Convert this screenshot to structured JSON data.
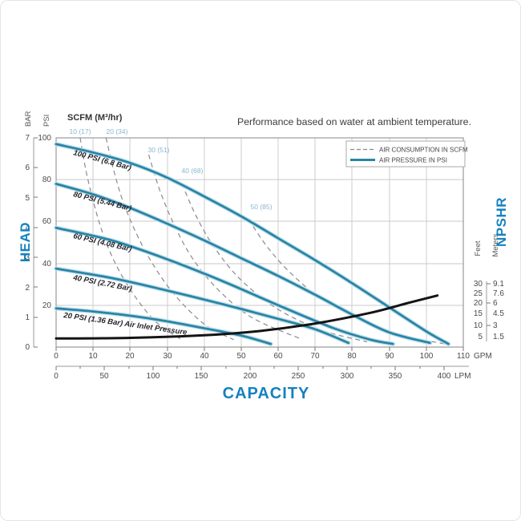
{
  "title": "Performance based on water at ambient temperature.",
  "scfm_header": "SCFM (M³/hr)",
  "legend": {
    "air_consumption": "AIR CONSUMPTION IN SCFM",
    "air_pressure": "AIR PRESSURE IN PSI"
  },
  "axes": {
    "head_title": "HEAD",
    "capacity_title": "CAPACITY",
    "npshr_title": "NPSHR",
    "bar_label": "BAR",
    "psi_label": "PSI",
    "feet_label": "Feet",
    "meters_label": "Meters",
    "gpm_unit": "GPM",
    "lpm_unit": "LPM",
    "bar_ticks": [
      "7",
      "6",
      "5",
      "4",
      "3",
      "2",
      "1",
      "0"
    ],
    "psi_ticks": [
      "100",
      "80",
      "60",
      "40",
      "20"
    ],
    "gpm_ticks": [
      "0",
      "10",
      "20",
      "30",
      "40",
      "50",
      "60",
      "70",
      "80",
      "90",
      "100",
      "110"
    ],
    "lpm_ticks": [
      "0",
      "50",
      "100",
      "150",
      "200",
      "250",
      "300",
      "350",
      "400"
    ],
    "feet_ticks": [
      "30",
      "25",
      "20",
      "15",
      "10",
      "5"
    ],
    "meters_ticks": [
      "9.1",
      "7.6",
      "6",
      "4.5",
      "3",
      "1.5"
    ]
  },
  "curve_labels": [
    "100 PSI (6.8 Bar)",
    "80 PSI (5.44 Bar)",
    "60 PSI (4.08 Bar)",
    "40 PSI (2.72 Bar)",
    "20 PSI (1.36 Bar) Air Inlet Pressure"
  ],
  "scfm_curve_labels": [
    "10 (17)",
    "20 (34)",
    "30 (51)",
    "40 (68)",
    "50 (85)"
  ],
  "colors": {
    "curve_blue": "#2a84a4",
    "axis_title_blue": "#1581c0",
    "scfm_label_blue": "#8ab5cf",
    "dashed_gray": "#8a8a8a",
    "npshr_black": "#141414",
    "grid_gray": "#c9c9c9"
  },
  "chart_data": {
    "type": "line",
    "title": "Performance based on water at ambient temperature.",
    "x_axis": {
      "label": "CAPACITY",
      "units": [
        "GPM",
        "LPM"
      ],
      "gpm_range": [
        0,
        110
      ],
      "lpm_range": [
        0,
        400
      ],
      "grid": true
    },
    "y_axis": {
      "label": "HEAD",
      "units": [
        "BAR",
        "PSI"
      ],
      "bar_range": [
        0,
        7
      ],
      "psi_range": [
        0,
        100
      ],
      "grid": true
    },
    "secondary_y_axis": {
      "label": "NPSHR",
      "units": [
        "Feet",
        "Meters"
      ],
      "feet_ticks": [
        30,
        25,
        20,
        15,
        10,
        5
      ],
      "meters_ticks": [
        9.1,
        7.6,
        6,
        4.5,
        3,
        1.5
      ]
    },
    "legend_position": "top-right-inside",
    "air_pressure_curves": [
      {
        "name": "100 PSI (6.8 Bar)",
        "air_inlet_psi": 100,
        "air_inlet_bar": 6.8,
        "gpm": [
          0,
          10,
          20,
          30,
          40,
          50,
          60,
          70,
          80,
          90,
          100,
          106
        ],
        "head_psi": [
          97,
          93,
          88,
          81,
          72,
          62.5,
          52,
          41.5,
          30.5,
          19,
          7.5,
          1.5
        ]
      },
      {
        "name": "80 PSI (5.44 Bar)",
        "air_inlet_psi": 80,
        "air_inlet_bar": 5.44,
        "gpm": [
          0,
          10,
          20,
          30,
          40,
          50,
          60,
          70,
          80,
          90,
          101
        ],
        "head_psi": [
          78,
          73,
          66.5,
          59,
          51,
          42.5,
          34,
          25,
          15.5,
          7,
          2
        ]
      },
      {
        "name": "60 PSI (4.08 Bar)",
        "air_inlet_psi": 60,
        "air_inlet_bar": 4.08,
        "gpm": [
          0,
          15,
          30,
          45,
          60,
          75,
          85,
          91
        ],
        "head_psi": [
          57,
          51,
          42,
          31.5,
          20,
          9,
          3.5,
          1.5
        ]
      },
      {
        "name": "40 PSI (2.72 Bar)",
        "air_inlet_psi": 40,
        "air_inlet_bar": 2.72,
        "gpm": [
          0,
          15,
          30,
          45,
          60,
          70,
          79
        ],
        "head_psi": [
          37.5,
          33,
          27,
          20.5,
          13.5,
          8.5,
          2
        ]
      },
      {
        "name": "20 PSI (1.36 Bar)",
        "air_inlet_psi": 20,
        "air_inlet_bar": 1.36,
        "gpm": [
          0,
          10,
          20,
          30,
          40,
          50,
          58
        ],
        "head_psi": [
          18.5,
          17,
          15,
          12.3,
          9,
          5.5,
          1.5
        ]
      }
    ],
    "air_consumption_curves": [
      {
        "name": "10 (17)",
        "scfm": 10,
        "m3_hr": 17,
        "gpm": [
          6.5,
          8,
          10,
          12.5,
          16,
          21,
          27,
          33.5
        ],
        "head_psi": [
          100,
          85,
          70,
          55,
          40,
          25,
          12,
          4
        ]
      },
      {
        "name": "20 (34)",
        "scfm": 20,
        "m3_hr": 34,
        "gpm": [
          13.5,
          15.5,
          18,
          21.5,
          26,
          32,
          40,
          48
        ],
        "head_psi": [
          100,
          85,
          70,
          55,
          40,
          25,
          11,
          3.5
        ]
      },
      {
        "name": "30 (51)",
        "scfm": 30,
        "m3_hr": 51,
        "gpm": [
          25,
          28,
          32,
          37,
          44,
          53,
          66
        ],
        "head_psi": [
          92,
          75,
          58,
          42,
          27,
          14,
          4
        ]
      },
      {
        "name": "40 (68)",
        "scfm": 40,
        "m3_hr": 68,
        "gpm": [
          34,
          38,
          43,
          50,
          60,
          72,
          84
        ],
        "head_psi": [
          78,
          62,
          47,
          32,
          18,
          8,
          2.5
        ]
      },
      {
        "name": "50 (85)",
        "scfm": 50,
        "m3_hr": 85,
        "gpm": [
          52,
          57,
          63,
          71,
          82,
          94,
          105
        ],
        "head_psi": [
          61,
          48,
          36,
          24,
          13,
          5.5,
          1.5
        ]
      }
    ],
    "npshr_curve": {
      "name": "NPSHR",
      "gpm": [
        0,
        20,
        40,
        55,
        70,
        85,
        95,
        103
      ],
      "feet": [
        4.5,
        4.8,
        6,
        8,
        11.5,
        16.5,
        21,
        24.5
      ]
    }
  }
}
